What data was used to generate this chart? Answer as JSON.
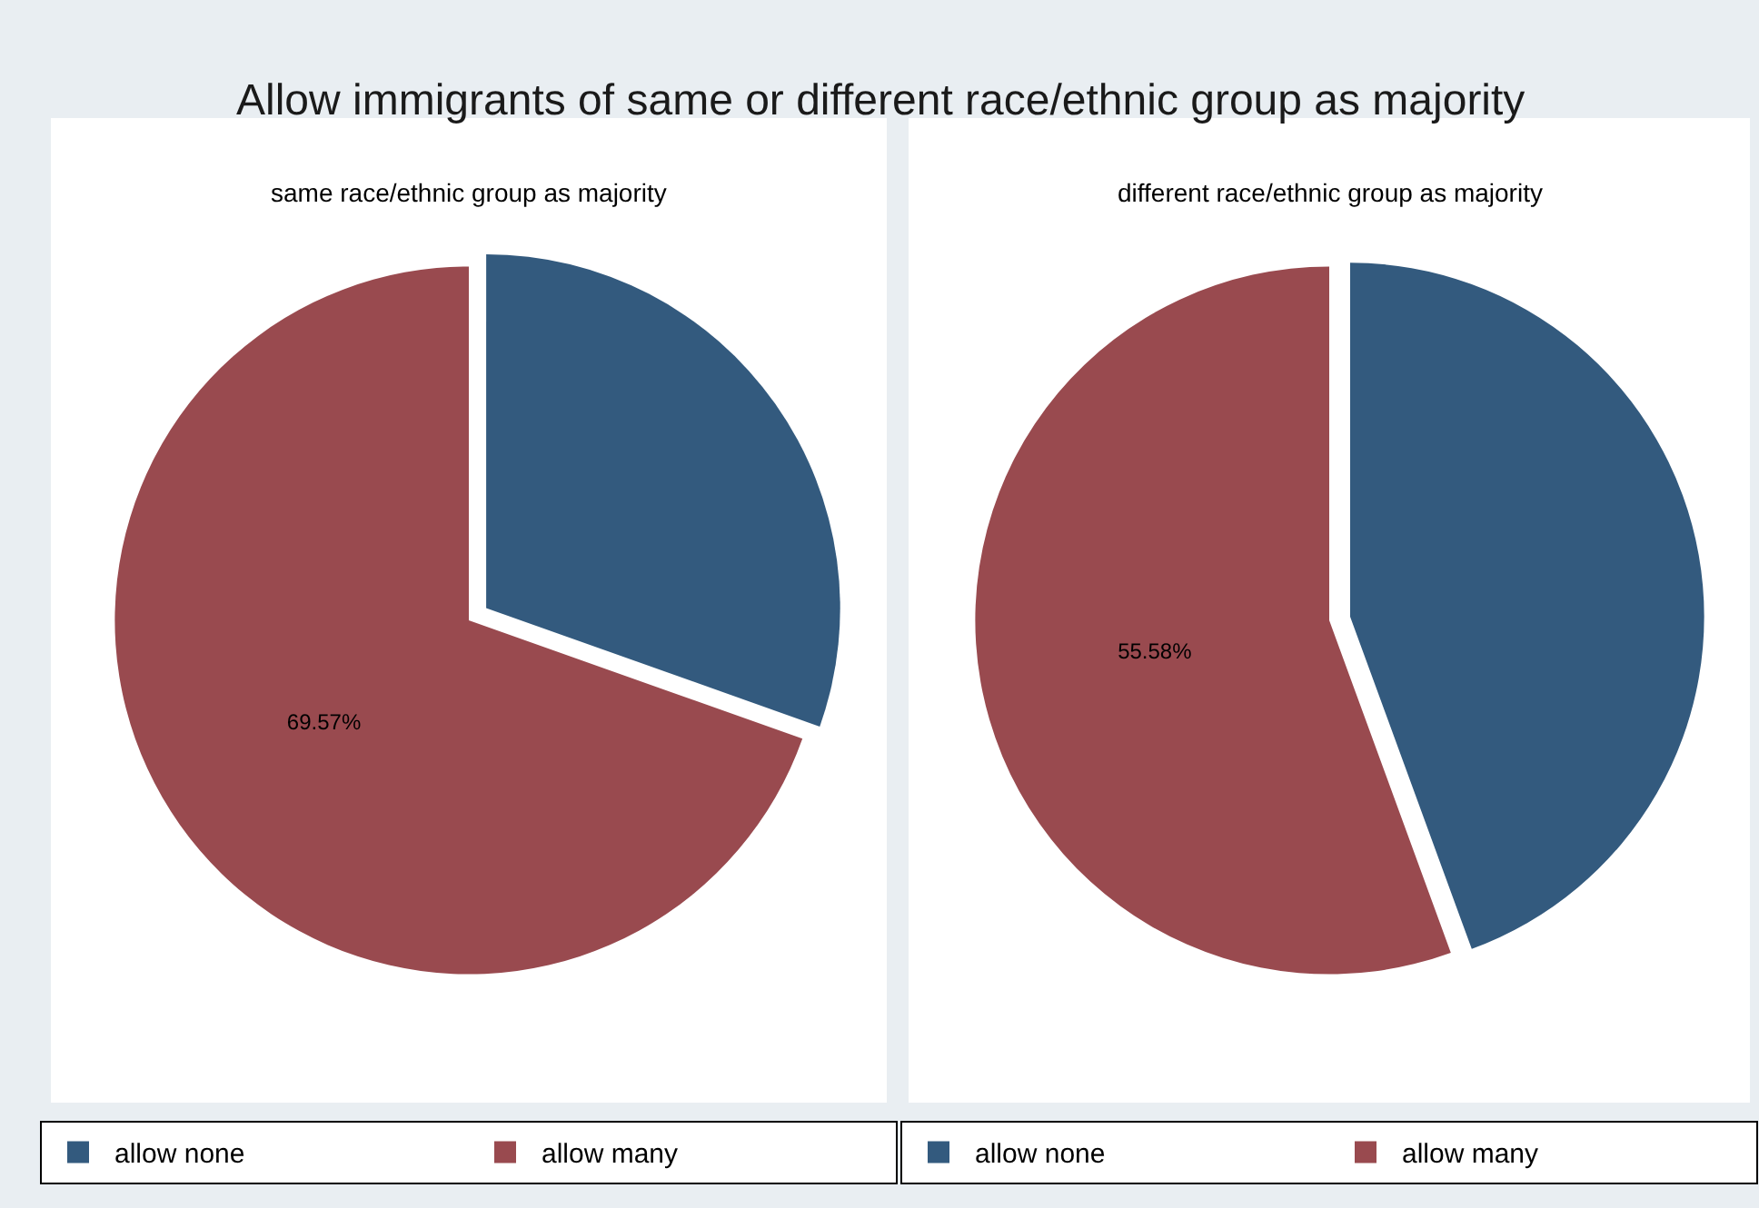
{
  "chart_data": [
    {
      "type": "pie",
      "title": "Allow immigrants of same or different race/ethnic group as majority",
      "subtitle": "same race/ethnic group as majority",
      "categories": [
        "allow none",
        "allow many"
      ],
      "values": [
        30.43,
        69.57
      ],
      "colors": [
        "#335a7e",
        "#994a4f"
      ],
      "value_labels": [
        null,
        "69.57%"
      ],
      "legend": "bottom"
    },
    {
      "type": "pie",
      "subtitle": "different race/ethnic group as majority",
      "categories": [
        "allow none",
        "allow many"
      ],
      "values": [
        44.42,
        55.58
      ],
      "colors": [
        "#335a7e",
        "#994a4f"
      ],
      "value_labels": [
        null,
        "55.58%"
      ],
      "legend": "bottom"
    }
  ]
}
